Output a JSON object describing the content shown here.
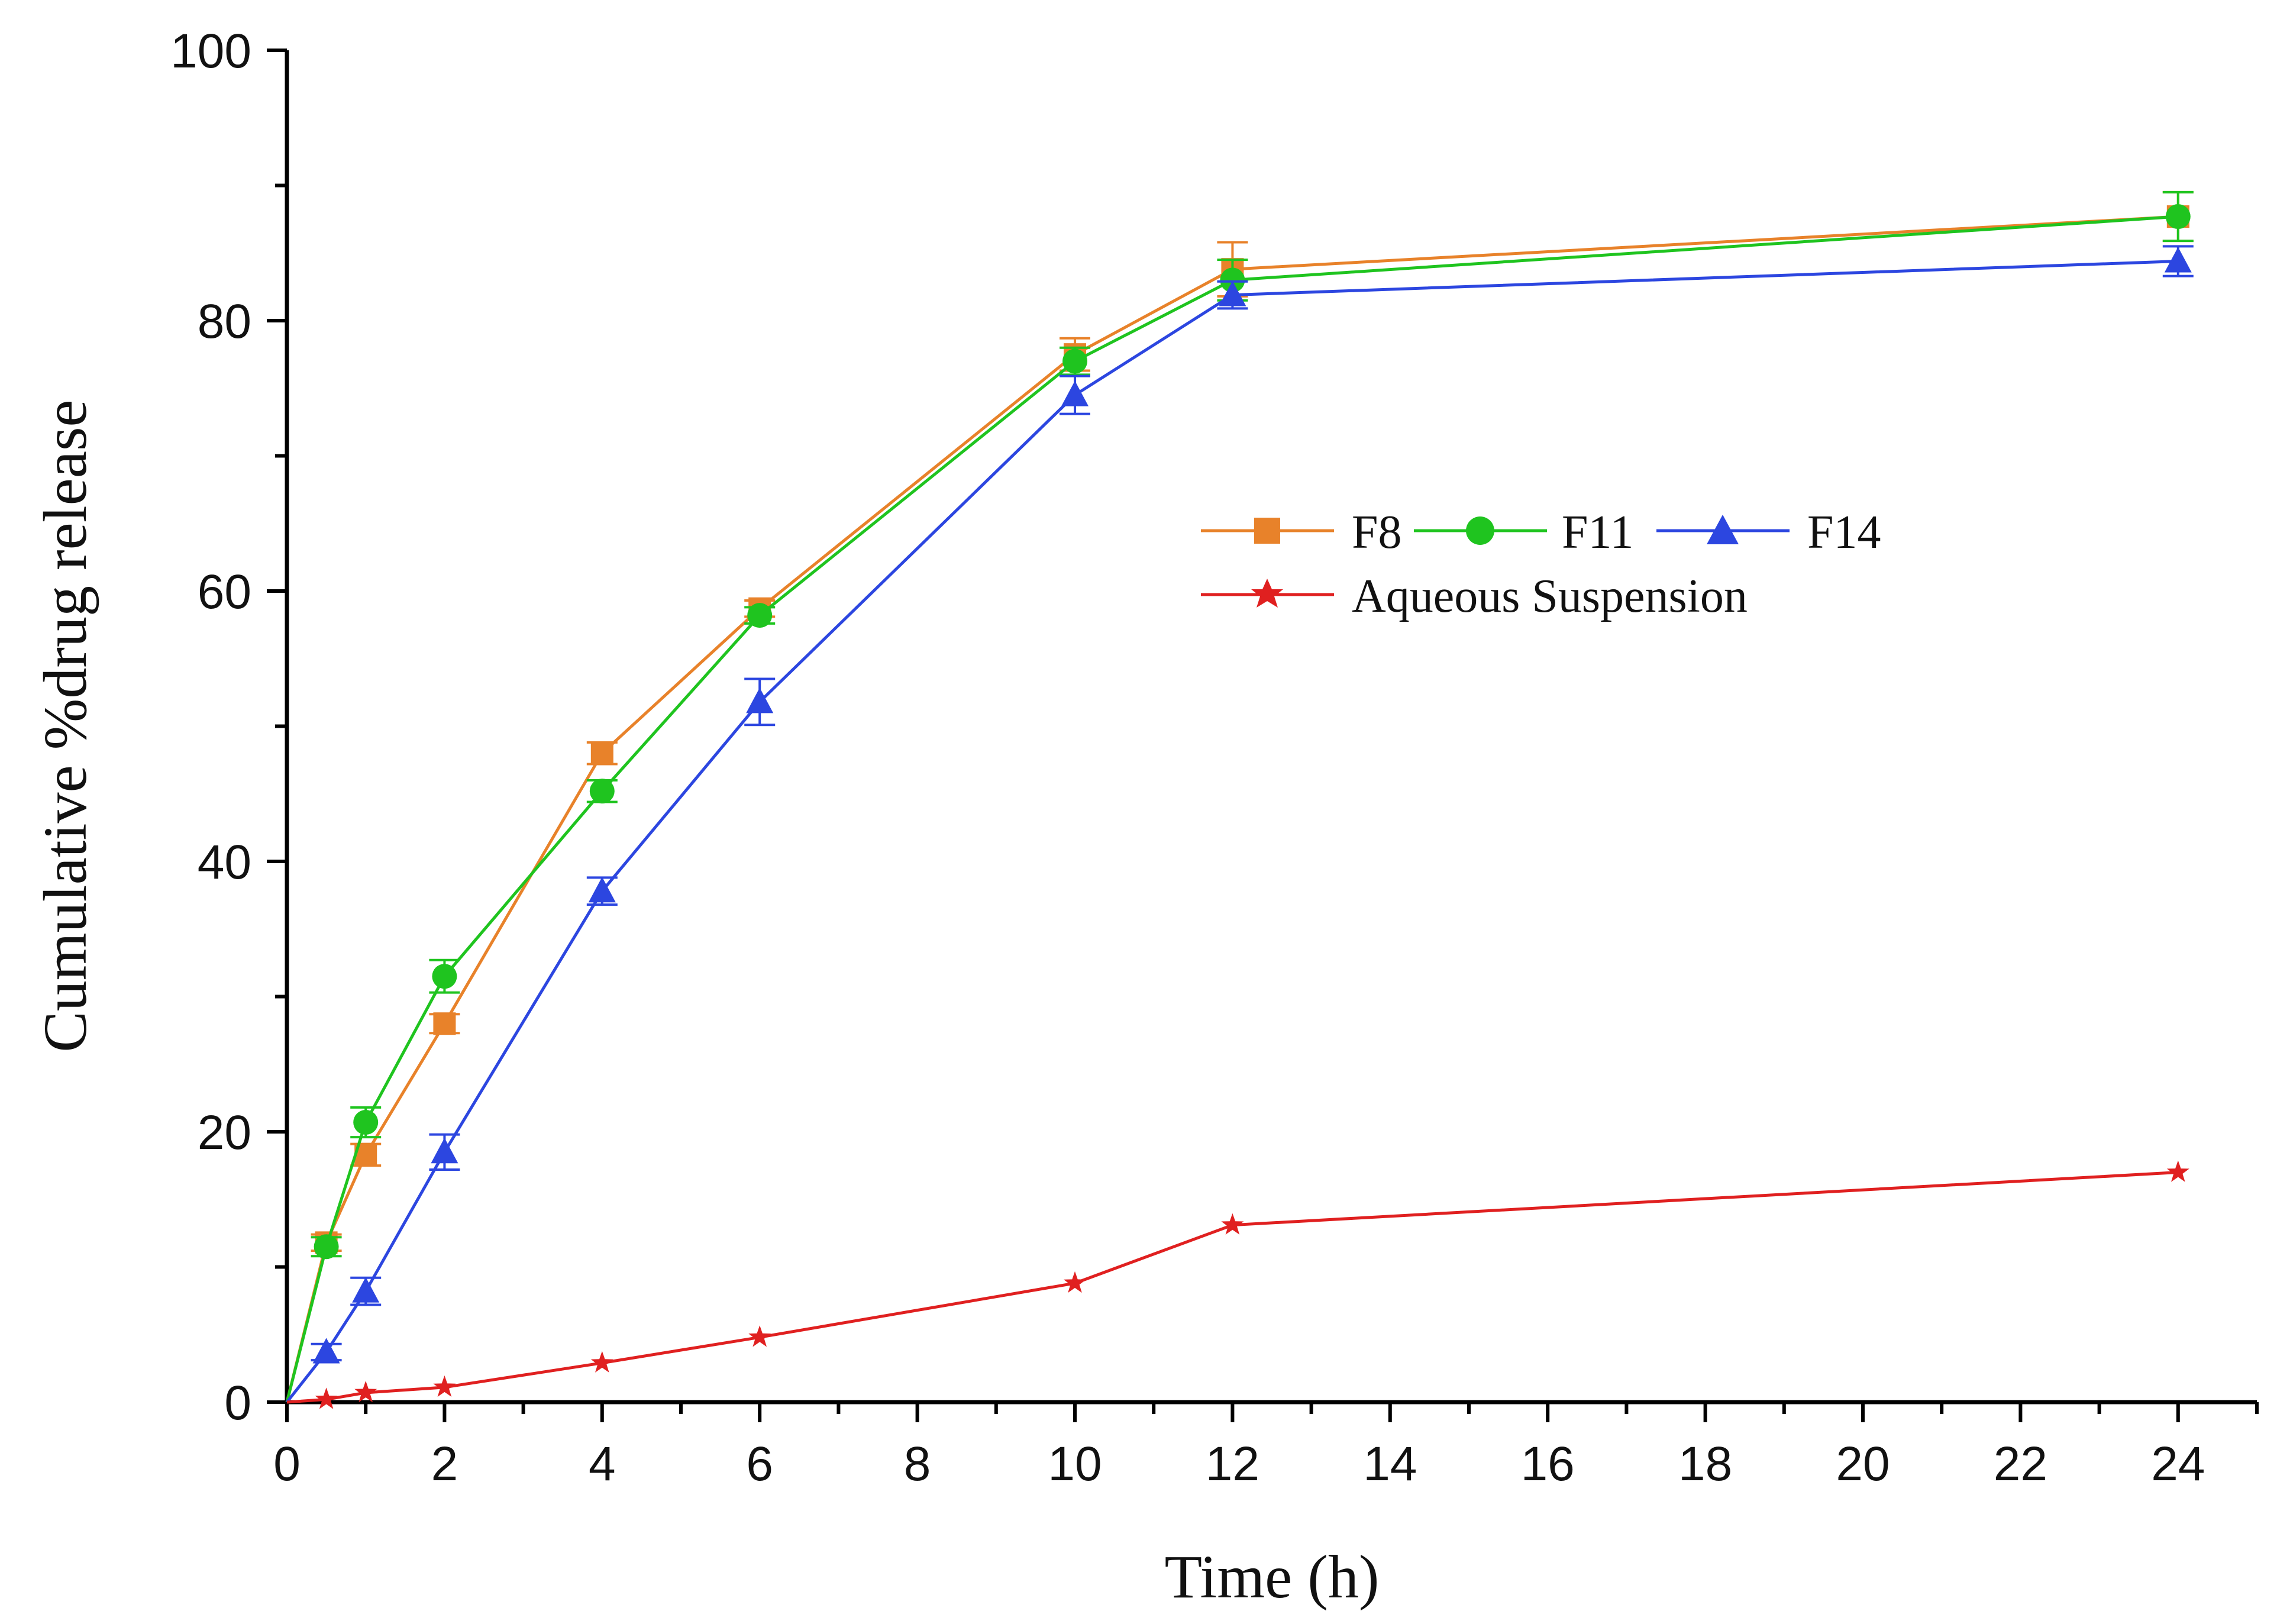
{
  "chart_data": {
    "type": "line",
    "title": "",
    "xlabel": "Time (h)",
    "ylabel": "Cumulative %drug release",
    "xlim": [
      0,
      25
    ],
    "ylim": [
      0,
      100
    ],
    "xticks": [
      "0",
      "2",
      "4",
      "6",
      "8",
      "10",
      "12",
      "14",
      "16",
      "18",
      "20",
      "22",
      "24"
    ],
    "yticks": [
      "0",
      "20",
      "40",
      "60",
      "80",
      "100"
    ],
    "grid": false,
    "legend_position": "center-right",
    "series": [
      {
        "name": "F8",
        "color": "#E8822A",
        "marker": "square",
        "x": [
          0,
          0.5,
          1,
          2,
          4,
          6,
          10,
          12,
          24
        ],
        "y": [
          0,
          11.8,
          18.3,
          28,
          48,
          58.7,
          77.5,
          83.8,
          87.7
        ],
        "err": [
          0,
          0.6,
          0.8,
          0.7,
          0.8,
          0.6,
          1.2,
          2.0,
          1.8
        ]
      },
      {
        "name": "F11",
        "color": "#1FC41F",
        "marker": "circle",
        "x": [
          0,
          0.5,
          1,
          2,
          4,
          6,
          10,
          12,
          24
        ],
        "y": [
          0,
          11.5,
          20.7,
          31.5,
          45.2,
          58.2,
          77,
          83,
          87.7
        ],
        "err": [
          0,
          0.7,
          1.1,
          1.2,
          0.8,
          0.6,
          1.0,
          1.5,
          1.8
        ]
      },
      {
        "name": "F14",
        "color": "#2C46E0",
        "marker": "triangle",
        "x": [
          0,
          0.5,
          1,
          2,
          4,
          6,
          10,
          12,
          24
        ],
        "y": [
          0,
          3.7,
          8.2,
          18.5,
          37.8,
          51.8,
          74.5,
          81.9,
          84.4
        ],
        "err": [
          0,
          0.6,
          1.0,
          1.3,
          1.0,
          1.7,
          1.4,
          1.0,
          1.1
        ]
      },
      {
        "name": "Aqueous Suspension",
        "color": "#E02020",
        "marker": "star",
        "x": [
          0,
          0.5,
          1,
          2,
          4,
          6,
          10,
          12,
          24
        ],
        "y": [
          0,
          0.2,
          0.7,
          1.1,
          2.9,
          4.8,
          8.8,
          13.1,
          17
        ],
        "err": [
          0,
          0,
          0,
          0,
          0,
          0,
          0,
          0,
          0
        ]
      }
    ]
  }
}
